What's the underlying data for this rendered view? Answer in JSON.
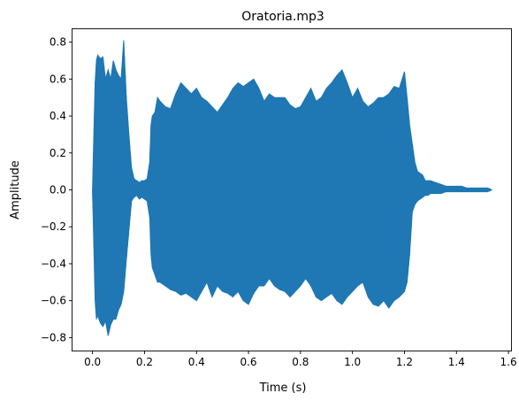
{
  "chart_data": {
    "type": "line",
    "title": "Oratoria.mp3",
    "xlabel": "Time (s)",
    "ylabel": "Amplitude",
    "xlim": [
      -0.077,
      1.61
    ],
    "ylim": [
      -0.87,
      0.87
    ],
    "xticks": [
      0.0,
      0.2,
      0.4,
      0.6,
      0.8,
      1.0,
      1.2,
      1.4,
      1.6
    ],
    "xtick_labels": [
      "0.0",
      "0.2",
      "0.4",
      "0.6",
      "0.8",
      "1.0",
      "1.2",
      "1.4",
      "1.6"
    ],
    "yticks": [
      -0.8,
      -0.6,
      -0.4,
      -0.2,
      0.0,
      0.2,
      0.4,
      0.6,
      0.8
    ],
    "ytick_labels": [
      "−0.8",
      "−0.6",
      "−0.4",
      "−0.2",
      "0.0",
      "0.2",
      "0.4",
      "0.6",
      "0.8"
    ],
    "grid": false,
    "legend": "none",
    "color": "#1f77b4",
    "series": [
      {
        "x": [
          0.0,
          0.005,
          0.01,
          0.015,
          0.02,
          0.03,
          0.04,
          0.05,
          0.06,
          0.07,
          0.08,
          0.09,
          0.1,
          0.11,
          0.12,
          0.13,
          0.14,
          0.15,
          0.16,
          0.17,
          0.18,
          0.19,
          0.2,
          0.21,
          0.22,
          0.225,
          0.23,
          0.24,
          0.25,
          0.26,
          0.28,
          0.3,
          0.32,
          0.34,
          0.36,
          0.38,
          0.4,
          0.42,
          0.44,
          0.46,
          0.48,
          0.5,
          0.52,
          0.54,
          0.56,
          0.58,
          0.6,
          0.62,
          0.64,
          0.66,
          0.68,
          0.7,
          0.72,
          0.74,
          0.76,
          0.78,
          0.8,
          0.82,
          0.84,
          0.86,
          0.88,
          0.9,
          0.92,
          0.94,
          0.96,
          0.98,
          1.0,
          1.02,
          1.04,
          1.06,
          1.08,
          1.1,
          1.12,
          1.14,
          1.16,
          1.18,
          1.2,
          1.21,
          1.22,
          1.23,
          1.24,
          1.25,
          1.26,
          1.27,
          1.28,
          1.29,
          1.3,
          1.32,
          1.34,
          1.36,
          1.38,
          1.4,
          1.42,
          1.44,
          1.46,
          1.48,
          1.5,
          1.52,
          1.535
        ],
        "upper": [
          0.0,
          0.3,
          0.58,
          0.7,
          0.73,
          0.71,
          0.72,
          0.6,
          0.65,
          0.6,
          0.7,
          0.65,
          0.62,
          0.6,
          0.81,
          0.5,
          0.3,
          0.12,
          0.06,
          0.05,
          0.04,
          0.05,
          0.05,
          0.06,
          0.15,
          0.35,
          0.4,
          0.42,
          0.5,
          0.48,
          0.45,
          0.44,
          0.52,
          0.58,
          0.55,
          0.52,
          0.55,
          0.5,
          0.48,
          0.45,
          0.42,
          0.46,
          0.5,
          0.55,
          0.58,
          0.56,
          0.58,
          0.6,
          0.55,
          0.48,
          0.52,
          0.5,
          0.5,
          0.5,
          0.46,
          0.44,
          0.45,
          0.5,
          0.55,
          0.48,
          0.5,
          0.55,
          0.58,
          0.62,
          0.65,
          0.58,
          0.5,
          0.55,
          0.48,
          0.45,
          0.47,
          0.5,
          0.5,
          0.52,
          0.56,
          0.55,
          0.64,
          0.5,
          0.35,
          0.25,
          0.15,
          0.1,
          0.09,
          0.08,
          0.05,
          0.05,
          0.05,
          0.04,
          0.03,
          0.02,
          0.02,
          0.02,
          0.02,
          0.01,
          0.01,
          0.01,
          0.01,
          0.01,
          0.0
        ],
        "lower": [
          0.0,
          -0.3,
          -0.6,
          -0.7,
          -0.68,
          -0.72,
          -0.74,
          -0.71,
          -0.79,
          -0.73,
          -0.7,
          -0.7,
          -0.65,
          -0.62,
          -0.55,
          -0.38,
          -0.22,
          -0.06,
          -0.04,
          -0.03,
          -0.05,
          -0.04,
          -0.05,
          -0.06,
          -0.15,
          -0.35,
          -0.42,
          -0.46,
          -0.5,
          -0.5,
          -0.52,
          -0.54,
          -0.55,
          -0.57,
          -0.56,
          -0.58,
          -0.6,
          -0.55,
          -0.5,
          -0.58,
          -0.52,
          -0.55,
          -0.56,
          -0.58,
          -0.55,
          -0.6,
          -0.62,
          -0.56,
          -0.52,
          -0.52,
          -0.48,
          -0.52,
          -0.54,
          -0.55,
          -0.58,
          -0.55,
          -0.52,
          -0.48,
          -0.52,
          -0.58,
          -0.6,
          -0.58,
          -0.56,
          -0.6,
          -0.62,
          -0.58,
          -0.55,
          -0.52,
          -0.5,
          -0.58,
          -0.62,
          -0.63,
          -0.6,
          -0.64,
          -0.6,
          -0.58,
          -0.55,
          -0.5,
          -0.35,
          -0.12,
          -0.08,
          -0.06,
          -0.05,
          -0.04,
          -0.03,
          -0.03,
          -0.02,
          -0.02,
          -0.02,
          -0.01,
          -0.01,
          -0.01,
          -0.01,
          -0.01,
          -0.01,
          -0.01,
          -0.01,
          -0.01,
          0.0
        ]
      }
    ]
  }
}
